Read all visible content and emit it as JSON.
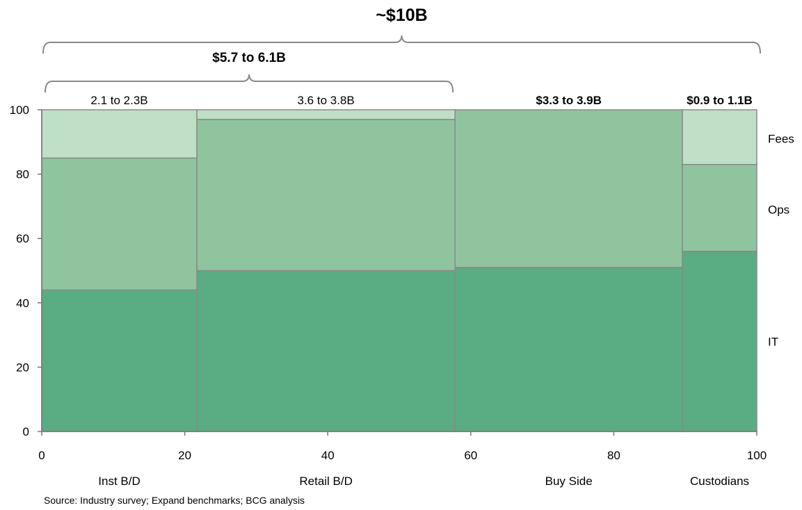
{
  "chart_data": {
    "type": "marimekko",
    "title": "~$10B",
    "bracket_labels": [
      {
        "text": "~$10B",
        "from": 0,
        "to": 100
      },
      {
        "text": "$5.7 to 6.1B",
        "from": 0,
        "to": 57.8
      }
    ],
    "columns": [
      {
        "name": "Inst B/D",
        "total_label": "2.1 to 2.3B",
        "total_bold": false,
        "x_start": 0,
        "x_end": 21.7,
        "IT": 44,
        "Ops": 41,
        "Fees": 15
      },
      {
        "name": "Retail B/D",
        "total_label": "3.6 to 3.8B",
        "total_bold": false,
        "x_start": 21.7,
        "x_end": 57.8,
        "IT": 50,
        "Ops": 47,
        "Fees": 3
      },
      {
        "name": "Buy Side",
        "total_label": "$3.3 to 3.9B",
        "total_bold": true,
        "x_start": 57.8,
        "x_end": 89.6,
        "IT": 51,
        "Ops": 49,
        "Fees": 0
      },
      {
        "name": "Custodians",
        "total_label": "$0.9 to 1.1B",
        "total_bold": true,
        "x_start": 89.6,
        "x_end": 100,
        "IT": 56,
        "Ops": 27,
        "Fees": 17
      }
    ],
    "segments": [
      "IT",
      "Ops",
      "Fees"
    ],
    "segment_colors": {
      "IT": "#5aac82",
      "Ops": "#8fc49f",
      "Fees": "#bfdfc7"
    },
    "segment_labels": [
      "Fees",
      "Ops",
      "IT"
    ],
    "x_ticks": [
      "0",
      "20",
      "40",
      "60",
      "80",
      "100"
    ],
    "y_ticks": [
      "0",
      "20",
      "40",
      "60",
      "80",
      "100"
    ],
    "xlim": [
      0,
      100
    ],
    "ylim": [
      0,
      100
    ],
    "grid": false,
    "legend": "right"
  },
  "source": "Source: Industry survey; Expand benchmarks; BCG analysis"
}
